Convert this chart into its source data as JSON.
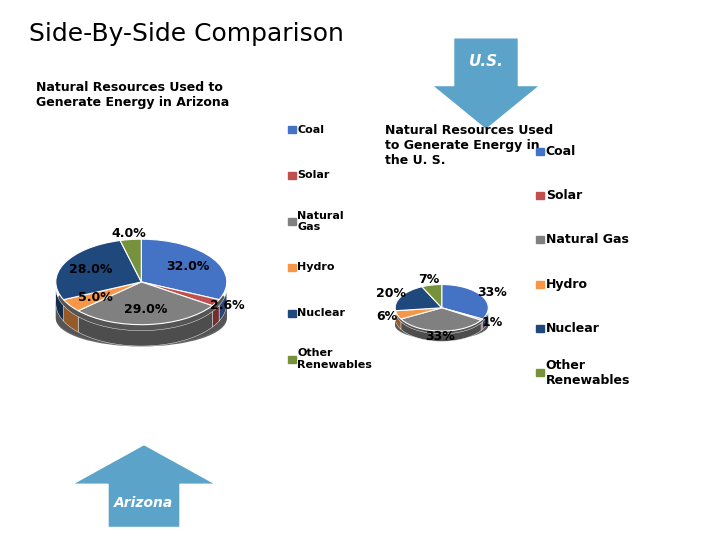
{
  "title": "Side-By-Side Comparison",
  "az_subtitle": "Natural Resources Used to\nGenerate Energy in Arizona",
  "us_subtitle": "Natural Resources Used\nto Generate Energy in\nthe U. S.",
  "az_values": [
    32.0,
    2.6,
    29.0,
    5.0,
    28.0,
    4.0
  ],
  "az_pct_labels": [
    "32.0%",
    "2.6%",
    "29.0%",
    "5.0%",
    "28.0%",
    "4.0%"
  ],
  "az_pie_colors": [
    "#4472C4",
    "#C0504D",
    "#808080",
    "#F79646",
    "#1F497D",
    "#76923C"
  ],
  "us_values": [
    33,
    1,
    33,
    6,
    20,
    7
  ],
  "us_pct_labels": [
    "33%",
    "1%",
    "33%",
    "6%",
    "20%",
    "7%"
  ],
  "us_pie_colors": [
    "#4472C4",
    "#C0504D",
    "#808080",
    "#F79646",
    "#1F497D",
    "#76923C"
  ],
  "legend_labels": [
    "Coal",
    "Solar",
    "Natural\nGas",
    "Hydro",
    "Nuclear",
    "Other\nRenewables"
  ],
  "legend_labels_us": [
    "Coal",
    "Solar",
    "Natural Gas",
    "Hydro",
    "Nuclear",
    "Other\nRenewables"
  ],
  "arrow_color": "#5BA3C9",
  "divider_color": "#AAAAAA",
  "bg_color": "#FFFFFF",
  "label_fontsize": 9,
  "legend_fontsize": 8
}
